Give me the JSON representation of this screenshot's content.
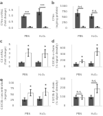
{
  "chart_data": [
    {
      "type": "bar",
      "title": "a",
      "ylabel": "CFIm mRNA\n(fold change)",
      "categories": [
        "PBS",
        "H₂O₂"
      ],
      "series": [
        {
          "color": "#555555",
          "values": [
            1.0,
            1.35
          ],
          "errors": [
            0.08,
            0.25
          ]
        },
        {
          "color": "#999999",
          "values": [
            0.12,
            0.1
          ],
          "errors": [
            0.03,
            0.03
          ]
        }
      ],
      "annotations": [
        {
          "text": "***",
          "category": "PBS"
        },
        {
          "text": "***",
          "category": "H₂O₂"
        }
      ],
      "ylim": [
        0,
        1.8
      ],
      "yticks": [
        {
          "value": 0,
          "label": "0.0"
        },
        0.5,
        {
          "value": 1,
          "label": "1.0"
        },
        1.5
      ],
      "grid": false
    },
    {
      "type": "bar",
      "title": "b",
      "ylabel": "CFIm\n(ng/mg protein)",
      "categories": [
        "PBS",
        "H₂O₂"
      ],
      "series": [
        {
          "color": "#555555",
          "values": [
            700,
            550
          ],
          "errors": [
            140,
            90
          ]
        },
        {
          "color": "#999999",
          "values": [
            75,
            70
          ],
          "errors": [
            18,
            15
          ]
        }
      ],
      "annotations": [
        {
          "text": "n.s.",
          "category": "PBS"
        },
        {
          "text": "n.s.",
          "category": "H₂O₂"
        }
      ],
      "ylim": [
        0,
        1000
      ],
      "yticks": [
        0,
        250,
        500,
        750,
        1000
      ],
      "grid": false
    },
    {
      "type": "bar",
      "title": "c",
      "ylabel": "C3 mRNA\n(fold change)",
      "categories": [
        "PBS",
        "H₂O₂"
      ],
      "series": [
        {
          "color": "#555555",
          "values": [
            1.0,
            1.05
          ],
          "errors": [
            0.12,
            0.18
          ]
        },
        {
          "color": "#ffffff",
          "values": [
            3.2,
            3.0
          ],
          "errors": [
            0.85,
            0.9
          ],
          "annotations": [
            "*",
            "*"
          ]
        }
      ],
      "ylim": [
        0,
        5
      ],
      "yticks": [
        0,
        1,
        2,
        3,
        4,
        5
      ],
      "grid": false
    },
    {
      "type": "bar",
      "title": "d",
      "ylabel": "C3/C3b α-chain\n(% signal density)",
      "categories": [
        "PBS",
        "H₂O₂"
      ],
      "series": [
        {
          "color": "#555555",
          "values": [
            100,
            120
          ],
          "errors": [
            25,
            35
          ]
        },
        {
          "color": "#ffffff",
          "values": [
            175,
            480
          ],
          "errors": [
            45,
            115
          ],
          "annotations": [
            "*",
            "*"
          ]
        }
      ],
      "ylim": [
        0,
        700
      ],
      "yticks": [
        0,
        200,
        400,
        600
      ],
      "grid": false
    },
    {
      "type": "bar",
      "ylabel": "C3/C3b β-chain\n(% signal density)",
      "categories": [
        "PBS",
        "H₂O₂"
      ],
      "series": [
        {
          "color": "#555555",
          "values": [
            100,
            100
          ],
          "errors": [
            18,
            18
          ]
        },
        {
          "color": "#ffffff",
          "values": [
            95,
            195
          ],
          "errors": [
            22,
            48
          ]
        }
      ],
      "annotations": [
        {
          "text": "n.s.",
          "category": "PBS"
        },
        {
          "text": "n.s.",
          "category": "H₂O₂"
        }
      ],
      "ylim": [
        0,
        300
      ],
      "yticks": [
        0,
        100,
        200,
        300
      ],
      "grid": false
    },
    {
      "type": "bar",
      "title": "e",
      "ylabel": "C3/C3b concentration\n(ng/mg)",
      "categories": [
        "PBS",
        "H₂O₂"
      ],
      "series": [
        {
          "color": "#555555",
          "values": [
            28,
            32
          ],
          "errors": [
            7,
            8
          ]
        },
        {
          "color": "#ffffff",
          "values": [
            58,
            62
          ],
          "errors": [
            14,
            16
          ],
          "annotations": [
            "*",
            "*"
          ]
        }
      ],
      "ylim": [
        0,
        100
      ],
      "yticks": [
        0,
        25,
        50,
        75,
        100
      ],
      "grid": false
    }
  ]
}
